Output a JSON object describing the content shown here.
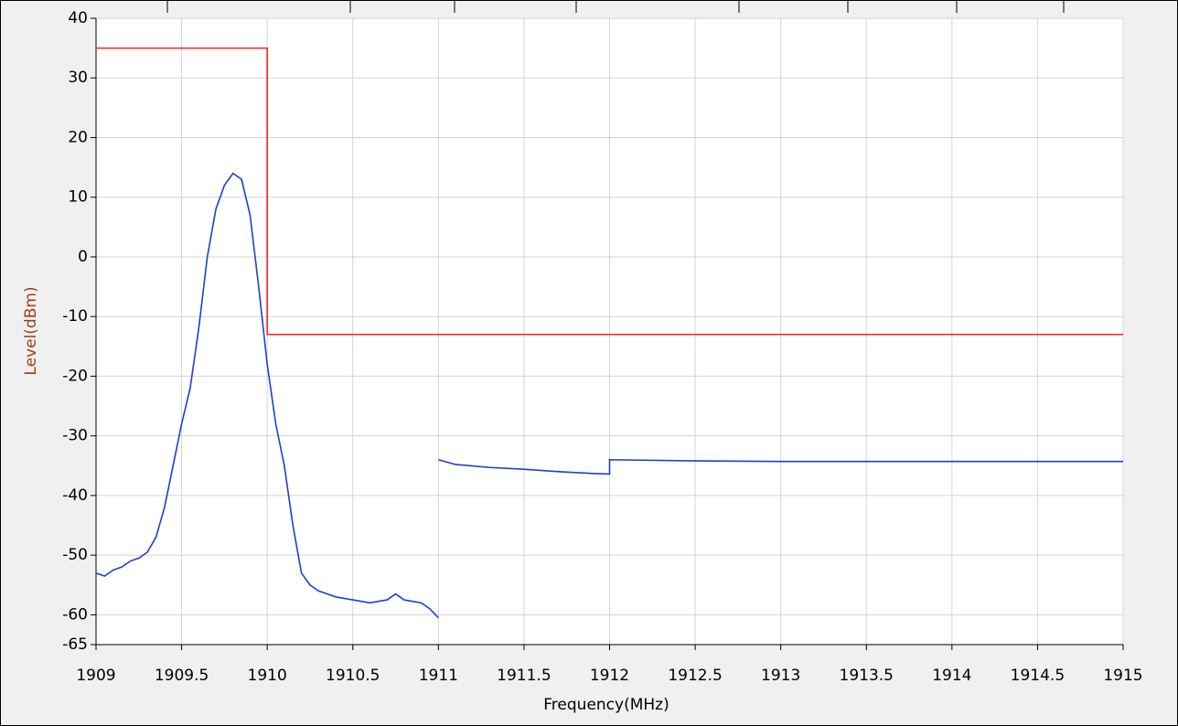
{
  "chart_data": {
    "type": "line",
    "xlabel": "Frequency(MHz)",
    "ylabel": "Level(dBm)",
    "xlim": [
      1909,
      1915
    ],
    "ylim": [
      -65,
      40
    ],
    "xticks": [
      1909,
      1909.5,
      1910,
      1910.5,
      1911,
      1911.5,
      1912,
      1912.5,
      1913,
      1913.5,
      1914,
      1914.5,
      1915
    ],
    "yticks": [
      40,
      30,
      20,
      10,
      0,
      -10,
      -20,
      -30,
      -40,
      -50,
      -60,
      -65
    ],
    "grid": true,
    "series": [
      {
        "color": "#ff2020",
        "x": [
          1909,
          1910,
          1910,
          1915
        ],
        "values": [
          35,
          35,
          -13,
          -13
        ]
      },
      {
        "color": "#1f3fcf",
        "x": [
          1909,
          1909.05,
          1909.1,
          1909.15,
          1909.2,
          1909.25,
          1909.3,
          1909.35,
          1909.4,
          1909.45,
          1909.5,
          1909.55,
          1909.6,
          1909.65,
          1909.7,
          1909.75,
          1909.8,
          1909.85,
          1909.9,
          1909.95,
          1910,
          1910.05,
          1910.1,
          1910.15,
          1910.2,
          1910.25,
          1910.3,
          1910.4,
          1910.5,
          1910.6,
          1910.7,
          1910.75,
          1910.8,
          1910.9,
          1910.95,
          1911
        ],
        "values": [
          -53,
          -53.5,
          -52.5,
          -52,
          -51,
          -50.5,
          -49.5,
          -47,
          -42,
          -35,
          -28,
          -22,
          -12,
          0,
          8,
          12,
          14,
          13,
          7,
          -5,
          -18,
          -28,
          -35,
          -45,
          -53,
          -55,
          -56,
          -57,
          -57.5,
          -58,
          -57.5,
          -56.5,
          -57.5,
          -58,
          -59,
          -60.5
        ]
      },
      {
        "color": "#1f3fcf",
        "x": [
          1911,
          1911.1,
          1911.3,
          1911.5,
          1911.7,
          1911.9,
          1912,
          1912,
          1912.5,
          1913,
          1914,
          1915
        ],
        "values": [
          -34,
          -34.8,
          -35.3,
          -35.6,
          -36,
          -36.3,
          -36.4,
          -34,
          -34.2,
          -34.3,
          -34.3,
          -34.3
        ]
      }
    ]
  }
}
